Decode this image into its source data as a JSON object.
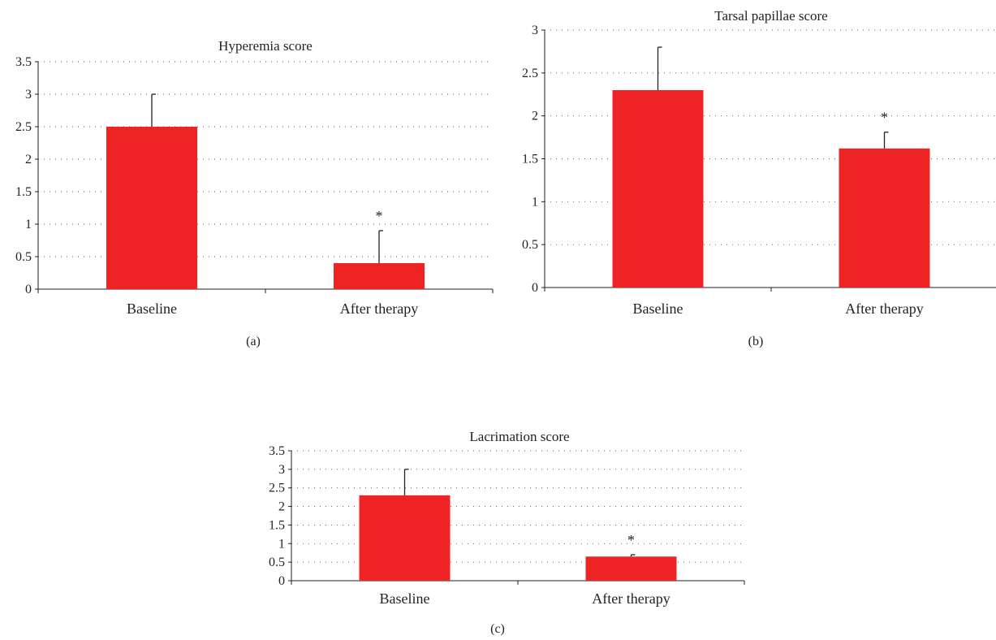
{
  "chart_data": [
    {
      "type": "bar",
      "panel_label": "(a)",
      "title": "Hyperemia score",
      "categories": [
        "Baseline",
        "After therapy"
      ],
      "values": [
        2.5,
        0.4
      ],
      "error_upper": [
        0.5,
        0.5
      ],
      "significance": [
        "",
        "*"
      ],
      "ylim": [
        0,
        3.5
      ],
      "yticks": [
        0,
        0.5,
        1,
        1.5,
        2,
        2.5,
        3,
        3.5
      ],
      "ytick_labels": [
        "0",
        "0.5",
        "1",
        "1.5",
        "2",
        "2.5",
        "3",
        "3.5"
      ],
      "grid": true,
      "xlabel": "",
      "ylabel": "",
      "bar_color": "#ee2424"
    },
    {
      "type": "bar",
      "panel_label": "(b)",
      "title": "Tarsal papillae score",
      "categories": [
        "Baseline",
        "After therapy"
      ],
      "values": [
        2.3,
        1.62
      ],
      "error_upper": [
        0.5,
        0.19
      ],
      "significance": [
        "",
        "*"
      ],
      "ylim": [
        0,
        3
      ],
      "yticks": [
        0,
        0.5,
        1,
        1.5,
        2,
        2.5,
        3
      ],
      "ytick_labels": [
        "0",
        "0.5",
        "1",
        "1.5",
        "2",
        "2.5",
        "3"
      ],
      "grid": true,
      "xlabel": "",
      "ylabel": "",
      "bar_color": "#ee2424"
    },
    {
      "type": "bar",
      "panel_label": "(c)",
      "title": "Lacrimation score",
      "categories": [
        "Baseline",
        "After therapy"
      ],
      "values": [
        2.3,
        0.65
      ],
      "error_upper": [
        0.7,
        0.05
      ],
      "significance": [
        "",
        "*"
      ],
      "ylim": [
        0,
        3.5
      ],
      "yticks": [
        0,
        0.5,
        1,
        1.5,
        2,
        2.5,
        3,
        3.5
      ],
      "ytick_labels": [
        "0",
        "0.5",
        "1",
        "1.5",
        "2",
        "2.5",
        "3",
        "3.5"
      ],
      "grid": true,
      "xlabel": "",
      "ylabel": "",
      "bar_color": "#ee2424"
    }
  ]
}
